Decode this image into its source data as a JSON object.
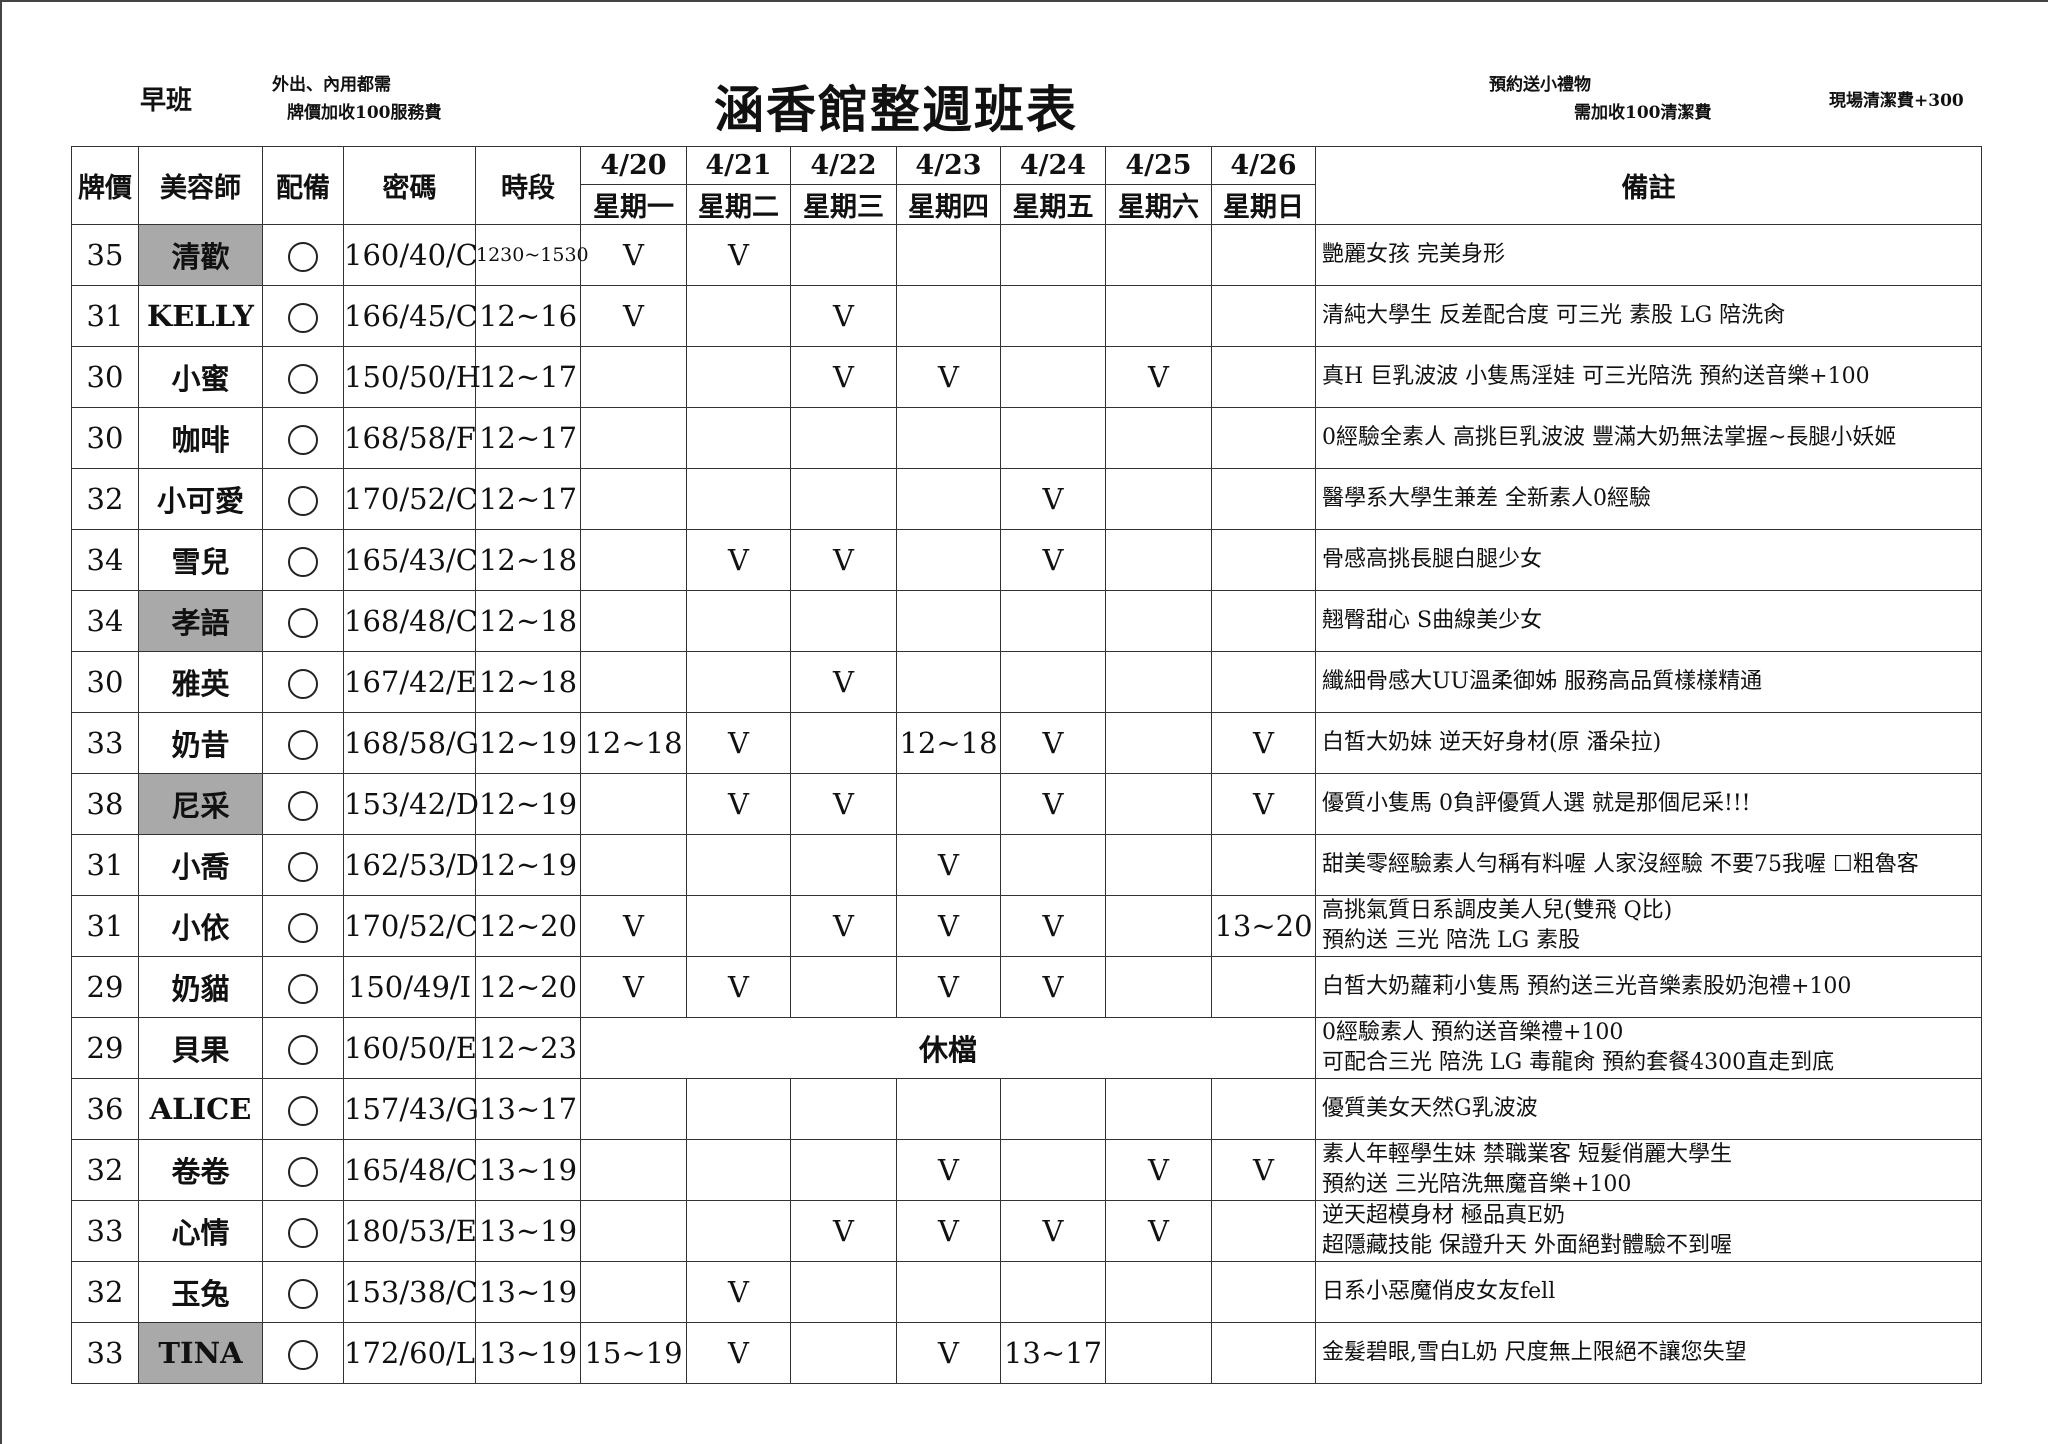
{
  "header": {
    "shift": "早班",
    "note_left_1": "外出、內用都需",
    "note_left_2": "牌價加收100服務費",
    "title": "涵香館整週班表",
    "note_right_1": "預約送小禮物",
    "note_right_2": "需加收100清潔費",
    "note_right_3": "現場清潔費+300"
  },
  "columns": {
    "price": "牌價",
    "stylist": "美容師",
    "equipment": "配備",
    "code": "密碼",
    "hours": "時段",
    "remarks": "備註",
    "dates": [
      "4/20",
      "4/21",
      "4/22",
      "4/23",
      "4/24",
      "4/25",
      "4/26"
    ],
    "weekdays": [
      "星期一",
      "星期二",
      "星期三",
      "星期四",
      "星期五",
      "星期六",
      "星期日"
    ]
  },
  "colors": {
    "highlight": "#a9a9a9"
  },
  "rows": [
    {
      "price": "35",
      "name": "清歡",
      "highlight": true,
      "equip": "○",
      "code": "160/40/C",
      "hours": "1230~1530",
      "days": [
        "V",
        "V",
        "",
        "",
        "",
        "",
        ""
      ],
      "remarks": [
        "艷麗女孩 完美身形"
      ]
    },
    {
      "price": "31",
      "name": "KELLY",
      "highlight": false,
      "equip": "○",
      "code": "166/45/C",
      "hours": "12~16",
      "days": [
        "V",
        "",
        "V",
        "",
        "",
        "",
        ""
      ],
      "remarks": [
        "清純大學生 反差配合度 可三光 素股 LG 陪洗肏"
      ]
    },
    {
      "price": "30",
      "name": "小蜜",
      "highlight": false,
      "equip": "○",
      "code": "150/50/H",
      "hours": "12~17",
      "days": [
        "",
        "",
        "V",
        "V",
        "",
        "V",
        ""
      ],
      "remarks": [
        "真H 巨乳波波 小隻馬淫娃 可三光陪洗 預約送音樂+100"
      ]
    },
    {
      "price": "30",
      "name": "咖啡",
      "highlight": false,
      "equip": "○",
      "code": "168/58/F",
      "hours": "12~17",
      "days": [
        "",
        "",
        "",
        "",
        "",
        "",
        ""
      ],
      "remarks": [
        "0經驗全素人 高挑巨乳波波 豐滿大奶無法掌握~長腿小妖姬"
      ]
    },
    {
      "price": "32",
      "name": "小可愛",
      "highlight": false,
      "equip": "○",
      "code": "170/52/C",
      "hours": "12~17",
      "days": [
        "",
        "",
        "",
        "",
        "V",
        "",
        ""
      ],
      "remarks": [
        "醫學系大學生兼差 全新素人0經驗"
      ]
    },
    {
      "price": "34",
      "name": "雪兒",
      "highlight": false,
      "equip": "○",
      "code": "165/43/C",
      "hours": "12~18",
      "days": [
        "",
        "V",
        "V",
        "",
        "V",
        "",
        ""
      ],
      "remarks": [
        "骨感高挑長腿白腿少女"
      ]
    },
    {
      "price": "34",
      "name": "孝語",
      "highlight": true,
      "equip": "○",
      "code": "168/48/C",
      "hours": "12~18",
      "days": [
        "",
        "",
        "",
        "",
        "",
        "",
        ""
      ],
      "remarks": [
        "翹臀甜心 S曲線美少女"
      ]
    },
    {
      "price": "30",
      "name": "雅英",
      "highlight": false,
      "equip": "○",
      "code": "167/42/E",
      "hours": "12~18",
      "days": [
        "",
        "",
        "V",
        "",
        "",
        "",
        ""
      ],
      "remarks": [
        "纖細骨感大UU溫柔御姊 服務高品質樣樣精通"
      ]
    },
    {
      "price": "33",
      "name": "奶昔",
      "highlight": false,
      "equip": "○",
      "code": "168/58/G",
      "hours": "12~19",
      "days": [
        "12~18",
        "V",
        "",
        "12~18",
        "V",
        "",
        "V"
      ],
      "remarks": [
        "白皙大奶妹 逆天好身材(原 潘朵拉)"
      ]
    },
    {
      "price": "38",
      "name": "尼采",
      "highlight": true,
      "equip": "○",
      "code": "153/42/D",
      "hours": "12~19",
      "days": [
        "",
        "V",
        "V",
        "",
        "V",
        "",
        "V"
      ],
      "remarks": [
        "優質小隻馬 0負評優質人選 就是那個尼采!!!"
      ]
    },
    {
      "price": "31",
      "name": "小喬",
      "highlight": false,
      "equip": "○",
      "code": "162/53/D",
      "hours": "12~19",
      "days": [
        "",
        "",
        "",
        "V",
        "",
        "",
        ""
      ],
      "remarks": [
        "甜美零經驗素人勻稱有料喔 人家沒經驗 不要75我喔 ☐粗魯客"
      ]
    },
    {
      "price": "31",
      "name": "小依",
      "highlight": false,
      "equip": "○",
      "code": "170/52/C",
      "hours": "12~20",
      "days": [
        "V",
        "",
        "V",
        "V",
        "V",
        "",
        "13~20"
      ],
      "remarks": [
        "高挑氣質日系調皮美人兒(雙飛 Q比)",
        "預約送 三光 陪洗 LG 素股"
      ]
    },
    {
      "price": "29",
      "name": "奶貓",
      "highlight": false,
      "equip": "○",
      "code": "150/49/I",
      "hours": "12~20",
      "days": [
        "V",
        "V",
        "",
        "V",
        "V",
        "",
        ""
      ],
      "remarks": [
        "白皙大奶蘿莉小隻馬 預約送三光音樂素股奶泡禮+100"
      ]
    },
    {
      "price": "29",
      "name": "貝果",
      "highlight": false,
      "equip": "○",
      "code": "160/50/E",
      "hours": "12~23",
      "off": "休檔",
      "days": [],
      "remarks": [
        "0經驗素人 預約送音樂禮+100",
        "可配合三光 陪洗 LG 毒龍肏 預約套餐4300直走到底"
      ]
    },
    {
      "price": "36",
      "name": "ALICE",
      "highlight": false,
      "equip": "○",
      "code": "157/43/G",
      "hours": "13~17",
      "days": [
        "",
        "",
        "",
        "",
        "",
        "",
        ""
      ],
      "remarks": [
        "優質美女天然G乳波波"
      ]
    },
    {
      "price": "32",
      "name": "卷卷",
      "highlight": false,
      "equip": "○",
      "code": "165/48/C",
      "hours": "13~19",
      "days": [
        "",
        "",
        "",
        "V",
        "",
        "V",
        "V"
      ],
      "remarks": [
        "素人年輕學生妹 禁職業客 短髮俏麗大學生",
        "預約送 三光陪洗無魔音樂+100"
      ]
    },
    {
      "price": "33",
      "name": "心情",
      "highlight": false,
      "equip": "○",
      "code": "180/53/E",
      "hours": "13~19",
      "days": [
        "",
        "",
        "V",
        "V",
        "V",
        "V",
        ""
      ],
      "remarks": [
        "逆天超模身材 極品真E奶",
        "超隱藏技能 保證升天 外面絕對體驗不到喔"
      ]
    },
    {
      "price": "32",
      "name": "玉兔",
      "highlight": false,
      "equip": "○",
      "code": "153/38/C",
      "hours": "13~19",
      "days": [
        "",
        "V",
        "",
        "",
        "",
        "",
        ""
      ],
      "remarks": [
        "日系小惡魔俏皮女友fell"
      ]
    },
    {
      "price": "33",
      "name": "TINA",
      "highlight": true,
      "equip": "○",
      "code": "172/60/L",
      "hours": "13~19",
      "days": [
        "15~19",
        "V",
        "",
        "V",
        "13~17",
        "",
        ""
      ],
      "remarks": [
        "金髮碧眼,雪白L奶 尺度無上限絕不讓您失望"
      ]
    }
  ]
}
